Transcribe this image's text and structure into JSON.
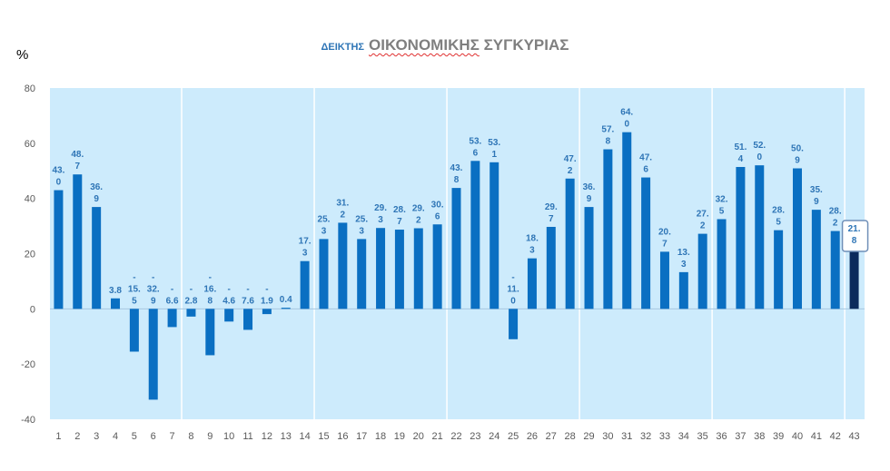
{
  "title": {
    "prefix": "ΔΕΙΚΤΗΣ",
    "main_part1": "ΟΙΚΟΝΟΜΙΚΗΣ",
    "main_part2": "ΣΥΓΚΥΡΙΑΣ"
  },
  "unit_label": "%",
  "colors": {
    "bar": "#0A6FC2",
    "bar_highlight": "#0B2A5C",
    "plot_bg": "#CDEBFC",
    "label": "#2E75B6",
    "axis_text": "#595959"
  },
  "chart_data": {
    "type": "bar",
    "title": "ΔΕΙΚΤΗΣ ΟΙΚΟΝΟΜΙΚΗΣ ΣΥΓΚΥΡΙΑΣ",
    "ylabel": "%",
    "ylim": [
      -40,
      80
    ],
    "yticks": [
      80,
      60,
      40,
      20,
      0,
      -20,
      -40
    ],
    "grid": true,
    "categories": [
      "1",
      "2",
      "3",
      "4",
      "5",
      "6",
      "7",
      "8",
      "9",
      "10",
      "11",
      "12",
      "13",
      "14",
      "15",
      "16",
      "17",
      "18",
      "19",
      "20",
      "21",
      "22",
      "23",
      "24",
      "25",
      "26",
      "27",
      "28",
      "29",
      "30",
      "31",
      "32",
      "33",
      "34",
      "35",
      "36",
      "37",
      "38",
      "39",
      "40",
      "41",
      "42",
      "43"
    ],
    "values": [
      43.0,
      48.7,
      36.9,
      3.8,
      -15.5,
      -32.9,
      -6.6,
      -2.8,
      -16.8,
      -4.6,
      -7.6,
      -1.9,
      0.4,
      17.3,
      25.3,
      31.2,
      25.3,
      29.3,
      28.7,
      29.2,
      30.6,
      43.8,
      53.6,
      53.1,
      -11.0,
      18.3,
      29.7,
      47.2,
      36.9,
      57.8,
      64.0,
      47.6,
      20.7,
      13.3,
      27.2,
      32.5,
      51.4,
      52.0,
      28.5,
      50.9,
      35.9,
      28.2,
      21.8
    ],
    "data_labels": [
      [
        "43.",
        "0"
      ],
      [
        "48.",
        "7"
      ],
      [
        "36.",
        "9"
      ],
      [
        "3.8"
      ],
      [
        "-",
        "15.",
        "5"
      ],
      [
        "-",
        "32.",
        "9"
      ],
      [
        "-",
        "6.6"
      ],
      [
        "-",
        "2.8"
      ],
      [
        "-",
        "16.",
        "8"
      ],
      [
        "-",
        "4.6"
      ],
      [
        "-",
        "7.6"
      ],
      [
        "-",
        "1.9"
      ],
      [
        "0.4"
      ],
      [
        "17.",
        "3"
      ],
      [
        "25.",
        "3"
      ],
      [
        "31.",
        "2"
      ],
      [
        "25.",
        "3"
      ],
      [
        "29.",
        "3"
      ],
      [
        "28.",
        "7"
      ],
      [
        "29.",
        "2"
      ],
      [
        "30.",
        "6"
      ],
      [
        "43.",
        "8"
      ],
      [
        "53.",
        "6"
      ],
      [
        "53.",
        "1"
      ],
      [
        "-",
        "11.",
        "0"
      ],
      [
        "18.",
        "3"
      ],
      [
        "29.",
        "7"
      ],
      [
        "47.",
        "2"
      ],
      [
        "36.",
        "9"
      ],
      [
        "57.",
        "8"
      ],
      [
        "64.",
        "0"
      ],
      [
        "47.",
        "6"
      ],
      [
        "20.",
        "7"
      ],
      [
        "13.",
        "3"
      ],
      [
        "27.",
        "2"
      ],
      [
        "32.",
        "5"
      ],
      [
        "51.",
        "4"
      ],
      [
        "52.",
        "0"
      ],
      [
        "28.",
        "5"
      ],
      [
        "50.",
        "9"
      ],
      [
        "35.",
        "9"
      ],
      [
        "28.",
        "2"
      ],
      [
        "21.",
        "8"
      ]
    ],
    "highlight_index": 42
  }
}
